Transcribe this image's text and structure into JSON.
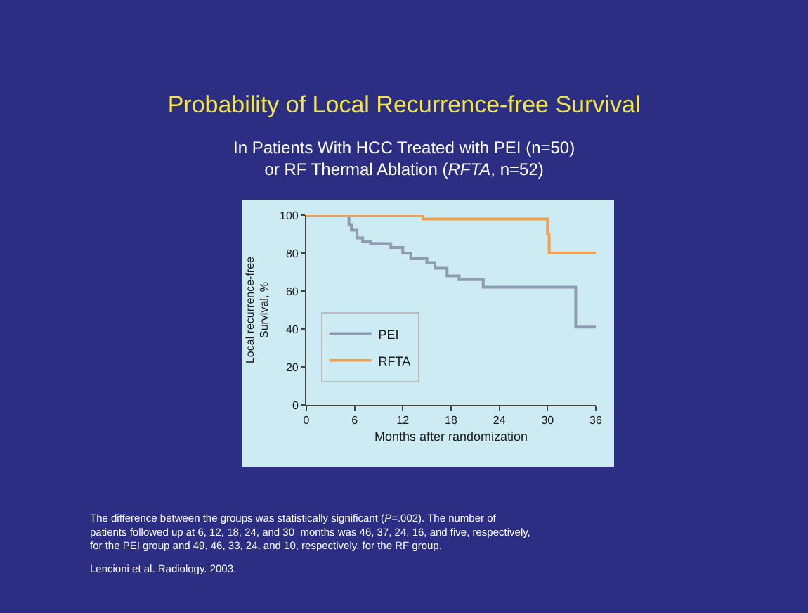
{
  "chart_data": {
    "type": "step",
    "title": "Probability of Local Recurrence-free Survival",
    "subtitle": "In Patients With HCC Treated with PEI (n=50)\nor RF Thermal Ablation (*RFTA*, n=52)",
    "xlabel": "Months after randomization",
    "ylabel": "Local recurrence-free\nSurvival, %",
    "series": [
      {
        "name": "PEI",
        "color": "#8e9bb0",
        "x": [
          0,
          5.3,
          5.6,
          6.3,
          7,
          8,
          10.5,
          12,
          13,
          15,
          16,
          17.5,
          19,
          22,
          33.5,
          36
        ],
        "values": [
          100,
          95,
          92,
          88,
          86,
          85,
          83,
          80,
          77,
          75,
          72,
          68,
          66,
          62,
          41,
          41
        ]
      },
      {
        "name": "RFTA",
        "color": "#f0a050",
        "x": [
          0,
          14.5,
          30,
          30.2,
          36
        ],
        "values": [
          100,
          98,
          90,
          80,
          80
        ]
      }
    ],
    "xlim": [
      0,
      36
    ],
    "xticks": [
      0,
      6,
      12,
      18,
      24,
      30,
      36
    ],
    "ylim": [
      0,
      100
    ],
    "yticks": [
      0,
      20,
      40,
      60,
      80,
      100
    ],
    "grid": false,
    "legend": "bottom left",
    "marker": "none",
    "line_style": "solid",
    "annotations": [
      "The difference between the groups was statistically significant (*P*=.002). The number of\npatients followed up at 6, 12, 18, 24, and 30  months was 46, 37, 24, 16, and five, respectively,\nfor the PEI group and 49, 46, 33, 24, and 10, respectively, for the RF group.",
      "Lencioni et al. Radiology. 2003."
    ]
  }
}
